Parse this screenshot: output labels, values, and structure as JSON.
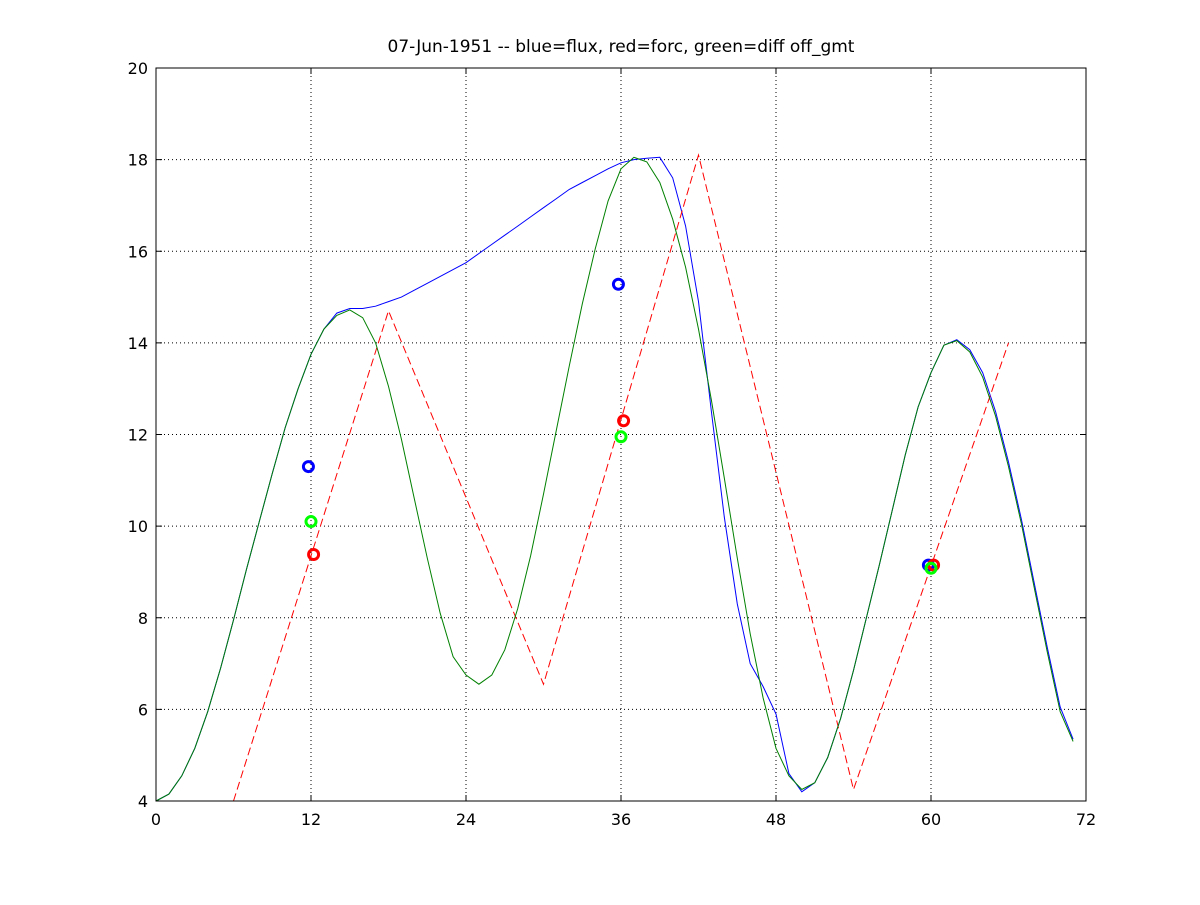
{
  "chart_data": {
    "type": "line",
    "title": "07-Jun-1951 -- blue=flux, red=forc, green=diff off_gmt",
    "xlabel": "",
    "ylabel": "",
    "xlim": [
      0,
      72
    ],
    "ylim": [
      4,
      20
    ],
    "xticks": [
      0,
      12,
      24,
      36,
      48,
      60,
      72
    ],
    "yticks": [
      4,
      6,
      8,
      10,
      12,
      14,
      16,
      18,
      20
    ],
    "grid": true,
    "series": [
      {
        "color": "#0000ff",
        "style": "solid",
        "x": [
          0,
          1,
          2,
          3,
          4,
          5,
          6,
          7,
          8,
          9,
          10,
          11,
          12,
          13,
          14,
          15,
          16,
          17,
          18,
          19,
          20,
          21,
          22,
          23,
          24,
          25,
          26,
          27,
          28,
          29,
          30,
          31,
          32,
          33,
          34,
          35,
          36,
          37,
          38,
          39,
          40,
          41,
          42,
          43,
          44,
          45,
          46,
          47,
          48,
          49,
          50,
          51,
          52,
          53,
          54,
          55,
          56,
          57,
          58,
          59,
          60,
          61,
          62,
          63,
          64,
          65,
          66,
          67,
          68,
          69,
          70,
          71
        ],
        "values": [
          4.0,
          4.15,
          4.55,
          5.15,
          5.95,
          6.9,
          7.95,
          9.05,
          10.1,
          11.15,
          12.15,
          13.0,
          13.75,
          14.3,
          14.65,
          14.75,
          14.75,
          14.8,
          14.9,
          15.0,
          15.15,
          15.3,
          15.45,
          15.6,
          15.75,
          15.95,
          16.15,
          16.35,
          16.55,
          16.75,
          16.95,
          17.15,
          17.35,
          17.5,
          17.65,
          17.8,
          17.93,
          18.0,
          18.03,
          18.05,
          17.6,
          16.55,
          14.9,
          12.5,
          10.2,
          8.3,
          7.0,
          6.5,
          5.9,
          4.6,
          4.2,
          4.4,
          4.95,
          5.8,
          6.85,
          8.0,
          9.15,
          10.35,
          11.55,
          12.6,
          13.35,
          13.95,
          14.07,
          13.85,
          13.35,
          12.5,
          11.4,
          10.15,
          8.75,
          7.35,
          6.05,
          5.35
        ]
      },
      {
        "color": "#ff0000",
        "style": "dashed",
        "x": [
          6,
          18,
          30,
          42,
          54,
          66
        ],
        "values": [
          4.0,
          14.7,
          6.55,
          18.1,
          4.25,
          14.0
        ]
      },
      {
        "color": "#008000",
        "style": "solid",
        "x": [
          0,
          1,
          2,
          3,
          4,
          5,
          6,
          7,
          8,
          9,
          10,
          11,
          12,
          13,
          14,
          15,
          16,
          17,
          18,
          19,
          20,
          21,
          22,
          23,
          24,
          25,
          26,
          27,
          28,
          29,
          30,
          31,
          32,
          33,
          34,
          35,
          36,
          37,
          38,
          39,
          40,
          41,
          42,
          43,
          44,
          45,
          46,
          47,
          48,
          49,
          50,
          51,
          52,
          53,
          54,
          55,
          56,
          57,
          58,
          59,
          60,
          61,
          62,
          63,
          64,
          65,
          66,
          67,
          68,
          69,
          70,
          71
        ],
        "values": [
          4.0,
          4.15,
          4.55,
          5.15,
          5.95,
          6.9,
          7.95,
          9.05,
          10.1,
          11.15,
          12.15,
          13.0,
          13.75,
          14.3,
          14.6,
          14.72,
          14.55,
          14.0,
          13.05,
          11.9,
          10.6,
          9.3,
          8.1,
          7.15,
          6.75,
          6.55,
          6.75,
          7.3,
          8.2,
          9.35,
          10.7,
          12.1,
          13.5,
          14.85,
          16.05,
          17.1,
          17.8,
          18.05,
          17.95,
          17.5,
          16.7,
          15.65,
          14.3,
          12.75,
          11.05,
          9.3,
          7.65,
          6.25,
          5.15,
          4.55,
          4.25,
          4.4,
          4.95,
          5.8,
          6.85,
          8.0,
          9.15,
          10.35,
          11.55,
          12.6,
          13.35,
          13.95,
          14.05,
          13.8,
          13.25,
          12.4,
          11.3,
          10.05,
          8.65,
          7.25,
          5.95,
          5.3
        ]
      }
    ],
    "markers": [
      {
        "color": "#0000ff",
        "x": 11.8,
        "y": 11.3
      },
      {
        "color": "#00ff00",
        "x": 12.0,
        "y": 10.1
      },
      {
        "color": "#ff0000",
        "x": 12.2,
        "y": 9.38
      },
      {
        "color": "#0000ff",
        "x": 35.8,
        "y": 15.28
      },
      {
        "color": "#ff0000",
        "x": 36.2,
        "y": 12.3
      },
      {
        "color": "#00ff00",
        "x": 36.0,
        "y": 11.95
      },
      {
        "color": "#0000ff",
        "x": 59.8,
        "y": 9.15
      },
      {
        "color": "#ff0000",
        "x": 60.2,
        "y": 9.15
      },
      {
        "color": "#00ff00",
        "x": 60.0,
        "y": 9.08
      }
    ]
  }
}
